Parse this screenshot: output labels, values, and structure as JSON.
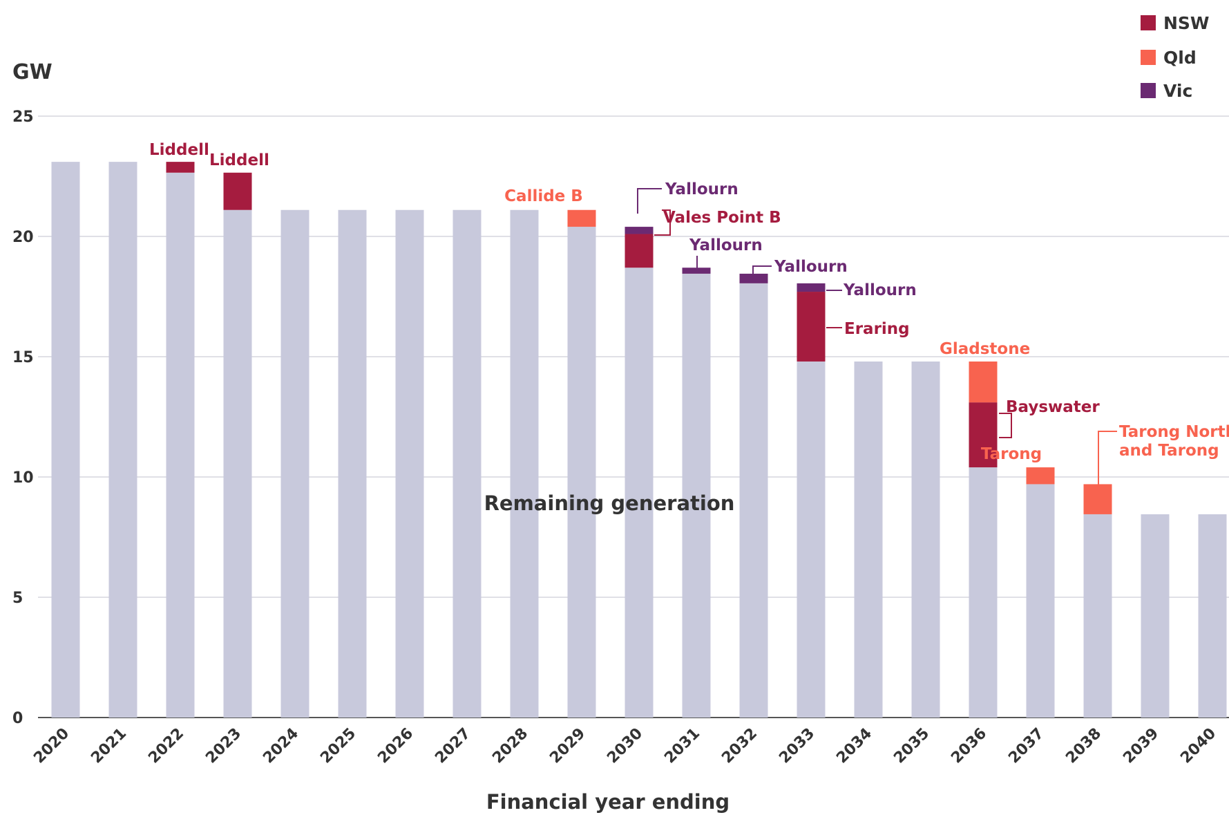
{
  "chart_data": {
    "type": "bar",
    "stacked": true,
    "ylabel": "GW",
    "xlabel": "Financial year ending",
    "ylim": [
      0,
      25
    ],
    "yticks": [
      0,
      5,
      10,
      15,
      20,
      25
    ],
    "grid": true,
    "legend_position": "top-right",
    "categories": [
      "2020",
      "2021",
      "2022",
      "2023",
      "2024",
      "2025",
      "2026",
      "2027",
      "2028",
      "2029",
      "2030",
      "2031",
      "2032",
      "2033",
      "2034",
      "2035",
      "2036",
      "2037",
      "2038",
      "2039",
      "2040"
    ],
    "remaining": [
      23.1,
      23.1,
      22.65,
      21.1,
      21.1,
      21.1,
      21.1,
      21.1,
      21.1,
      20.4,
      18.7,
      18.45,
      18.05,
      14.8,
      14.8,
      14.8,
      10.4,
      9.7,
      8.45,
      8.45,
      8.45
    ],
    "segments": [
      {
        "year": "2022",
        "state": "NSW",
        "from": 22.65,
        "to": 23.1
      },
      {
        "year": "2023",
        "state": "NSW",
        "from": 21.1,
        "to": 22.65
      },
      {
        "year": "2029",
        "state": "Qld",
        "from": 20.4,
        "to": 21.1
      },
      {
        "year": "2030",
        "state": "NSW",
        "from": 18.7,
        "to": 20.1
      },
      {
        "year": "2030",
        "state": "Vic",
        "from": 20.1,
        "to": 20.4
      },
      {
        "year": "2031",
        "state": "Vic",
        "from": 18.45,
        "to": 18.7
      },
      {
        "year": "2032",
        "state": "Vic",
        "from": 18.05,
        "to": 18.45
      },
      {
        "year": "2033",
        "state": "NSW",
        "from": 14.8,
        "to": 17.7
      },
      {
        "year": "2033",
        "state": "Vic",
        "from": 17.7,
        "to": 18.05
      },
      {
        "year": "2036",
        "state": "NSW",
        "from": 10.4,
        "to": 13.1
      },
      {
        "year": "2036",
        "state": "Qld",
        "from": 13.1,
        "to": 14.8
      },
      {
        "year": "2037",
        "state": "Qld",
        "from": 9.7,
        "to": 10.4
      },
      {
        "year": "2038",
        "state": "Qld",
        "from": 8.45,
        "to": 9.7
      }
    ],
    "legend": [
      {
        "key": "NSW",
        "label": "NSW",
        "color": "#a51c3f"
      },
      {
        "key": "Qld",
        "label": "Qld",
        "color": "#f8634f"
      },
      {
        "key": "Vic",
        "label": "Vic",
        "color": "#6b2a72"
      }
    ],
    "remaining_color": "#c8c9dc",
    "remaining_label": "Remaining generation",
    "annotations": [
      {
        "text": "Liddell",
        "state": "NSW",
        "year": "2022"
      },
      {
        "text": "Liddell",
        "state": "NSW",
        "year": "2023"
      },
      {
        "text": "Callide B",
        "state": "Qld",
        "year": "2029"
      },
      {
        "text": "Yallourn",
        "state": "Vic",
        "year": "2030"
      },
      {
        "text": "Vales Point B",
        "state": "NSW",
        "year": "2030"
      },
      {
        "text": "Yallourn",
        "state": "Vic",
        "year": "2031"
      },
      {
        "text": "Yallourn",
        "state": "Vic",
        "year": "2032"
      },
      {
        "text": "Yallourn",
        "state": "Vic",
        "year": "2033"
      },
      {
        "text": "Eraring",
        "state": "NSW",
        "year": "2033"
      },
      {
        "text": "Gladstone",
        "state": "Qld",
        "year": "2036"
      },
      {
        "text": "Bayswater",
        "state": "NSW",
        "year": "2036"
      },
      {
        "text": "Tarong",
        "state": "Qld",
        "year": "2037"
      },
      {
        "text": "Tarong North",
        "state": "Qld",
        "year": "2038"
      },
      {
        "text": "and Tarong",
        "state": "Qld",
        "year": "2038"
      }
    ]
  }
}
